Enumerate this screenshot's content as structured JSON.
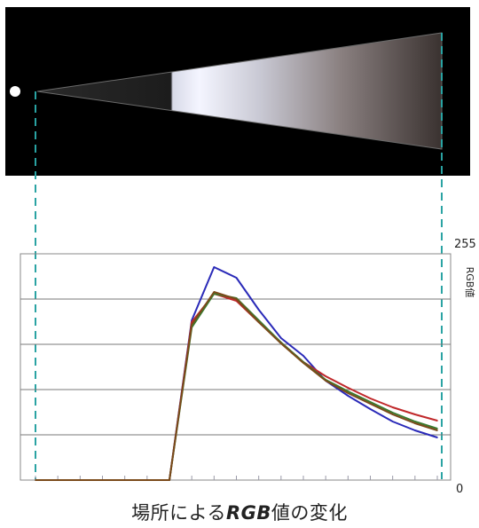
{
  "chart_data": {
    "type": "line",
    "ylabel": "RGB値",
    "ylim": [
      0,
      255
    ],
    "y_top_label": "255",
    "y_bottom_label": "0",
    "x_count": 19,
    "grid": true,
    "series": [
      {
        "color": "#2a2ab8",
        "values": [
          0,
          0,
          0,
          0,
          0,
          0,
          0,
          180,
          240,
          228,
          192,
          160,
          140,
          112,
          95,
          80,
          66,
          56,
          48
        ]
      },
      {
        "color": "#c0282a",
        "values": [
          0,
          0,
          0,
          0,
          0,
          0,
          0,
          178,
          210,
          202,
          178,
          155,
          133,
          117,
          104,
          92,
          82,
          74,
          67
        ]
      },
      {
        "color": "#3a7a2e",
        "values": [
          0,
          0,
          0,
          0,
          0,
          0,
          0,
          172,
          210,
          205,
          180,
          155,
          133,
          113,
          100,
          88,
          76,
          66,
          58
        ]
      },
      {
        "color": "#7a4a1a",
        "values": [
          0,
          0,
          0,
          0,
          0,
          0,
          0,
          175,
          212,
          204,
          178,
          154,
          132,
          112,
          98,
          86,
          74,
          64,
          56
        ]
      }
    ]
  },
  "caption": {
    "prefix": "場所による",
    "emph": "RGB",
    "suffix": "値の変化"
  }
}
